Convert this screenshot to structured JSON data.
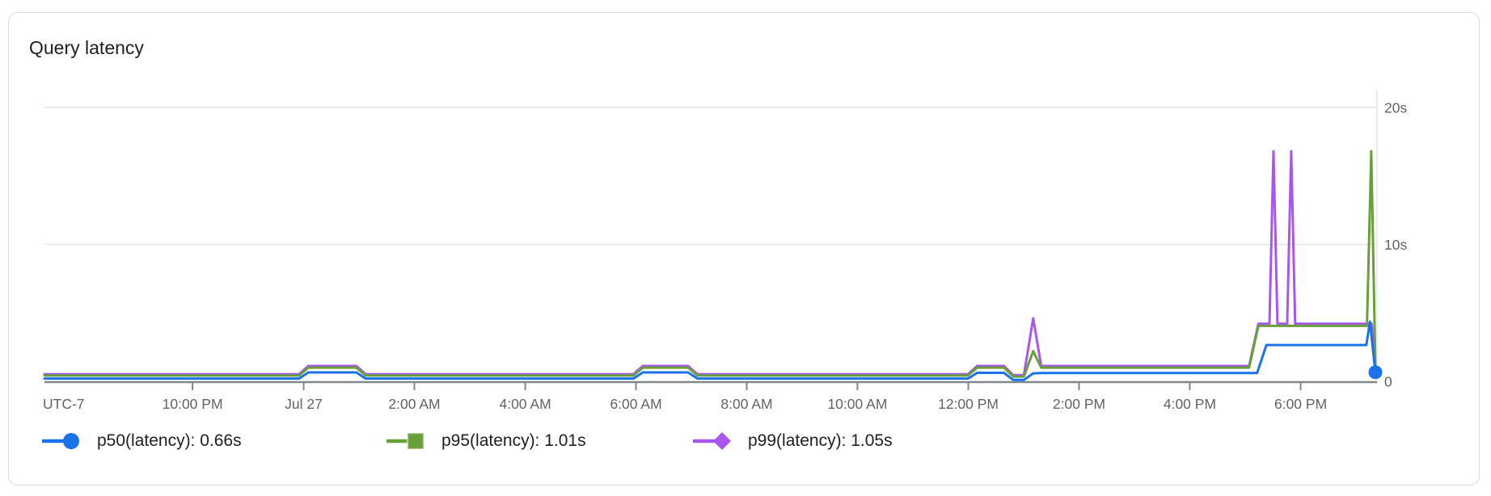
{
  "card": {
    "title": "Query latency"
  },
  "legend": {
    "items": [
      {
        "id": "p50",
        "label": "p50(latency): 0.66s",
        "color": "#1a73e8",
        "marker": "circle"
      },
      {
        "id": "p95",
        "label": "p95(latency): 1.01s",
        "color": "#689f38",
        "marker": "square"
      },
      {
        "id": "p99",
        "label": "p99(latency): 1.05s",
        "color": "#aa55f0",
        "marker": "diamond"
      }
    ]
  },
  "chart_data": {
    "type": "line",
    "title": "Query latency",
    "grid": true,
    "legend_position": "bottom",
    "x_axis": {
      "timezone_label": "UTC-7",
      "span_hours": 24,
      "ticks": [
        {
          "label": "10:00 PM",
          "f": 0.1111
        },
        {
          "label": "Jul 27",
          "f": 0.1945
        },
        {
          "label": "2:00 AM",
          "f": 0.2776
        },
        {
          "label": "4:00 AM",
          "f": 0.3608
        },
        {
          "label": "6:00 AM",
          "f": 0.4439
        },
        {
          "label": "8:00 AM",
          "f": 0.527
        },
        {
          "label": "10:00 AM",
          "f": 0.6101
        },
        {
          "label": "12:00 PM",
          "f": 0.6933
        },
        {
          "label": "2:00 PM",
          "f": 0.7764
        },
        {
          "label": "4:00 PM",
          "f": 0.8595
        },
        {
          "label": "6:00 PM",
          "f": 0.9427
        }
      ]
    },
    "y_axis": {
      "unit": "seconds",
      "max": 21.4,
      "ticks": [
        {
          "label": "20s",
          "v": 20
        },
        {
          "label": "10s",
          "v": 10
        },
        {
          "label": "0",
          "v": 0
        }
      ]
    },
    "series": [
      {
        "name": "p99(latency)",
        "last_value": "1.05s",
        "color": "#aa55f0",
        "marker": "diamond",
        "points": [
          [
            0,
            0.52
          ],
          [
            0.191,
            0.52
          ],
          [
            0.198,
            1.12
          ],
          [
            0.234,
            1.12
          ],
          [
            0.241,
            0.52
          ],
          [
            0.442,
            0.52
          ],
          [
            0.449,
            1.12
          ],
          [
            0.483,
            1.12
          ],
          [
            0.49,
            0.52
          ],
          [
            0.693,
            0.52
          ],
          [
            0.7,
            1.12
          ],
          [
            0.72,
            1.12
          ],
          [
            0.727,
            0.45
          ],
          [
            0.735,
            0.45
          ],
          [
            0.742,
            4.6
          ],
          [
            0.748,
            1.12
          ],
          [
            0.904,
            1.12
          ],
          [
            0.911,
            4.2
          ],
          [
            0.9193,
            4.2
          ],
          [
            0.9223,
            16.8
          ],
          [
            0.9253,
            4.2
          ],
          [
            0.9326,
            4.2
          ],
          [
            0.9356,
            16.8
          ],
          [
            0.9386,
            4.2
          ],
          [
            0.996,
            4.2
          ],
          [
            0.9988,
            1.05
          ]
        ]
      },
      {
        "name": "p95(latency)",
        "last_value": "1.01s",
        "color": "#689f38",
        "marker": "square",
        "points": [
          [
            0,
            0.42
          ],
          [
            0.191,
            0.42
          ],
          [
            0.198,
            1.0
          ],
          [
            0.234,
            1.0
          ],
          [
            0.241,
            0.42
          ],
          [
            0.442,
            0.42
          ],
          [
            0.449,
            1.0
          ],
          [
            0.483,
            1.0
          ],
          [
            0.49,
            0.42
          ],
          [
            0.693,
            0.42
          ],
          [
            0.7,
            1.0
          ],
          [
            0.72,
            1.0
          ],
          [
            0.727,
            0.35
          ],
          [
            0.735,
            0.35
          ],
          [
            0.742,
            2.2
          ],
          [
            0.748,
            1.0
          ],
          [
            0.904,
            1.0
          ],
          [
            0.911,
            4.05
          ],
          [
            0.9925,
            4.05
          ],
          [
            0.9957,
            16.8
          ],
          [
            0.9988,
            1.01
          ],
          [
            1.0,
            1.01
          ]
        ]
      },
      {
        "name": "p50(latency)",
        "last_value": "0.66s",
        "color": "#1a73e8",
        "marker": "circle",
        "points": [
          [
            0,
            0.2
          ],
          [
            0.191,
            0.2
          ],
          [
            0.198,
            0.65
          ],
          [
            0.234,
            0.65
          ],
          [
            0.241,
            0.2
          ],
          [
            0.442,
            0.2
          ],
          [
            0.449,
            0.65
          ],
          [
            0.483,
            0.65
          ],
          [
            0.49,
            0.2
          ],
          [
            0.693,
            0.2
          ],
          [
            0.7,
            0.62
          ],
          [
            0.72,
            0.62
          ],
          [
            0.727,
            0.1
          ],
          [
            0.735,
            0.1
          ],
          [
            0.742,
            0.58
          ],
          [
            0.748,
            0.6
          ],
          [
            0.91,
            0.6
          ],
          [
            0.917,
            2.65
          ],
          [
            0.992,
            2.65
          ],
          [
            0.9947,
            4.35
          ],
          [
            0.9988,
            0.66
          ]
        ]
      }
    ]
  }
}
